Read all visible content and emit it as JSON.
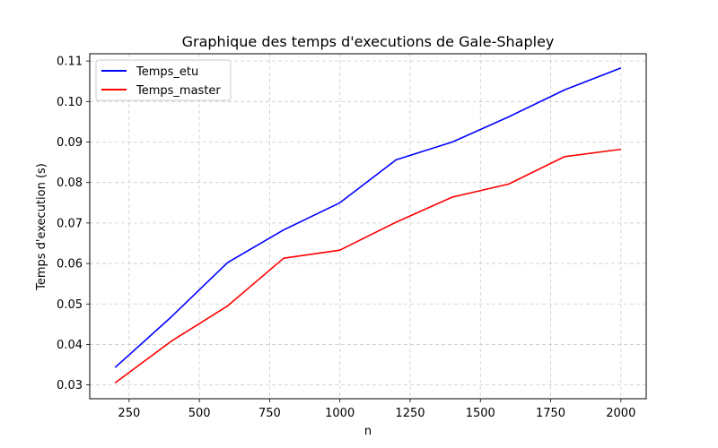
{
  "chart_data": {
    "type": "line",
    "title": "Graphique des temps d'executions de Gale-Shapley",
    "xlabel": "n",
    "ylabel": "Temps d'execution (s)",
    "xlim": [
      110,
      2090
    ],
    "ylim": [
      0.0266,
      0.1118
    ],
    "xticks": [
      250,
      500,
      750,
      1000,
      1250,
      1500,
      1750,
      2000
    ],
    "yticks": [
      0.03,
      0.04,
      0.05,
      0.06,
      0.07,
      0.08,
      0.09,
      0.1,
      0.11
    ],
    "xtick_labels": [
      "250",
      "500",
      "750",
      "1000",
      "1250",
      "1500",
      "1750",
      "2000"
    ],
    "ytick_labels": [
      "0.03",
      "0.04",
      "0.05",
      "0.06",
      "0.07",
      "0.08",
      "0.09",
      "0.10",
      "0.11"
    ],
    "grid": true,
    "legend_position": "top-left",
    "x": [
      200,
      400,
      600,
      800,
      1000,
      1200,
      1400,
      1600,
      1800,
      2000
    ],
    "series": [
      {
        "name": "Temps_etu",
        "color": "#0000ff",
        "values": [
          0.0343,
          0.0468,
          0.0602,
          0.0683,
          0.075,
          0.0856,
          0.09,
          0.0962,
          0.1029,
          0.1083
        ]
      },
      {
        "name": "Temps_master",
        "color": "#ff0000",
        "values": [
          0.0305,
          0.0408,
          0.0495,
          0.0613,
          0.0633,
          0.0702,
          0.0764,
          0.0796,
          0.0864,
          0.0882
        ]
      }
    ]
  }
}
